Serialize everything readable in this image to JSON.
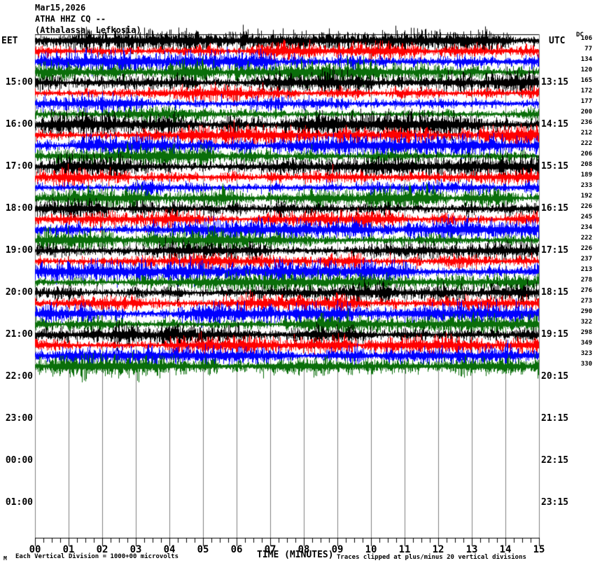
{
  "header": {
    "date": "Mar15,2026",
    "station_line": "ATHA HHZ CQ --",
    "location_line": "(Athalassa, Lefkosia)"
  },
  "axis_labels": {
    "left_timezone": "EET",
    "right_timezone": "UTC",
    "dc_column": "DC",
    "x_title": "TIME (MINUTES)"
  },
  "left_times": [
    "15:00",
    "16:00",
    "17:00",
    "18:00",
    "19:00",
    "20:00",
    "21:00",
    "22:00",
    "23:00",
    "00:00",
    "01:00"
  ],
  "right_times": [
    "13:15",
    "14:15",
    "15:15",
    "16:15",
    "17:15",
    "18:15",
    "19:15",
    "20:15",
    "21:15",
    "22:15",
    "23:15"
  ],
  "minute_labels": [
    "00",
    "01",
    "02",
    "03",
    "04",
    "05",
    "06",
    "07",
    "08",
    "09",
    "10",
    "11",
    "12",
    "13",
    "14",
    "15"
  ],
  "footer": {
    "mark": "M",
    "division_note": "Each Vertical Division = 1000+00 microvolts",
    "clip_note": "Traces clipped at plus/minus 20 vertical divisions"
  },
  "colors": {
    "trace_cycle": [
      "#000000",
      "#ff0000",
      "#0000ff",
      "#0a6e0a"
    ],
    "grid": "#808080",
    "axis": "#000000",
    "background": "#ffffff"
  },
  "chart_data": {
    "type": "line",
    "subtype": "helicorder-seismogram",
    "title": "ATHA HHZ CQ -- (Athalassa, Lefkosia) Mar15,2026",
    "xlabel": "TIME (MINUTES)",
    "x_range_minutes": [
      0,
      15
    ],
    "minutes_per_row": 15,
    "timezone_left": "EET",
    "timezone_right": "UTC",
    "rows_with_signal": 32,
    "trace_color_cycle_per_row": [
      "black",
      "red",
      "blue",
      "green"
    ],
    "hour_row_labels_left_eet": [
      "15:00",
      "16:00",
      "17:00",
      "18:00",
      "19:00",
      "20:00",
      "21:00",
      "22:00",
      "23:00",
      "00:00",
      "01:00"
    ],
    "hour_row_labels_right_utc": [
      "13:15",
      "14:15",
      "15:15",
      "16:15",
      "17:15",
      "18:15",
      "19:15",
      "20:15",
      "21:15",
      "22:15",
      "23:15"
    ],
    "dc_offsets": [
      106,
      77,
      134,
      120,
      165,
      172,
      177,
      200,
      236,
      212,
      222,
      206,
      208,
      189,
      233,
      192,
      226,
      245,
      234,
      222,
      226,
      237,
      213,
      278,
      276,
      273,
      290,
      322,
      298,
      349,
      323,
      330
    ],
    "amplitude_note": "Traces clipped at plus/minus 20 vertical divisions",
    "vertical_division_note": "Each Vertical Division = 1000+00 microvolts",
    "grid": "vertical gridlines every 1 minute",
    "legend_position": "none",
    "signal_character": "continuous dense seismic background noise, traces blank after 22:00 EET / 20:15 UTC"
  }
}
